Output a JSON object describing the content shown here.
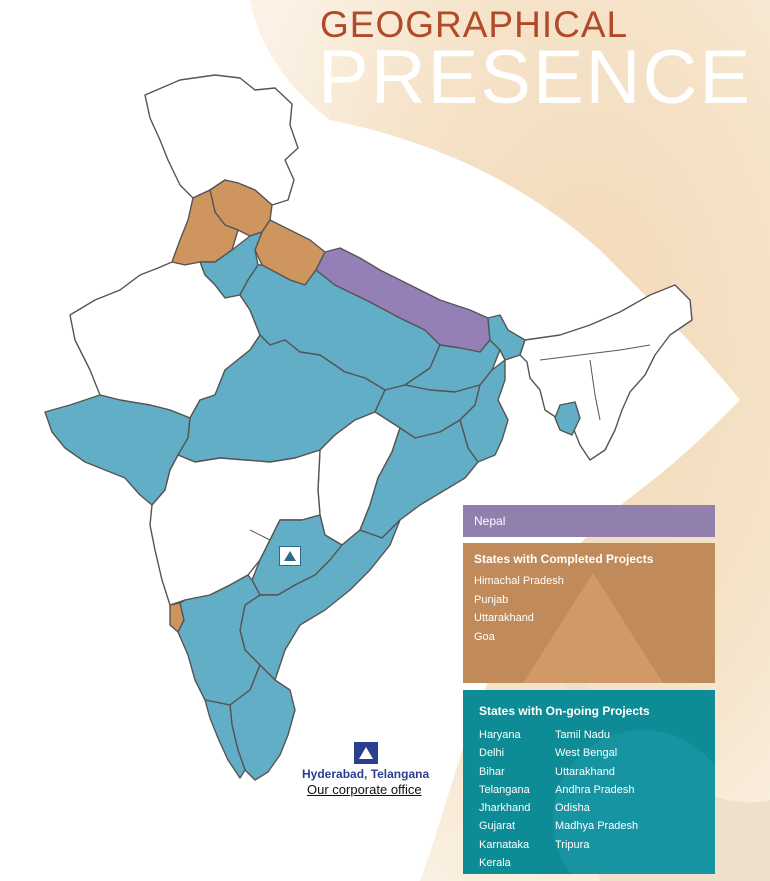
{
  "title": {
    "line1": "GEOGRAPHICAL",
    "line2": "PRESENCE"
  },
  "legend": {
    "nepal": {
      "label": "Nepal",
      "color": "#917fae"
    },
    "completed": {
      "heading": "States with Completed Projects",
      "color": "#c08a5a",
      "states": [
        "Himachal Pradesh",
        "Punjab",
        "Uttarakhand",
        "Goa"
      ]
    },
    "ongoing": {
      "heading": "States with On-going Projects",
      "color": "#0e8c95",
      "col1": [
        "Haryana",
        "Delhi",
        "Bihar",
        "Telangana",
        "Jharkhand",
        "Gujarat",
        "Karnataka",
        "Kerala"
      ],
      "col2": [
        "Tamil Nadu",
        "West Bengal",
        "Uttarakhand",
        "Andhra Pradesh",
        "Odisha",
        "Madhya Pradesh",
        "Tripura"
      ]
    }
  },
  "map_colors": {
    "ongoing_state": "#62aec6",
    "completed_state": "#cf955f",
    "nepal": "#9480b6",
    "other_state": "#ffffff",
    "border": "#555555"
  },
  "office": {
    "location": "Hyderabad, Telangana",
    "label": "Our corporate office"
  },
  "icons": {
    "office_marker": "company-logo-icon",
    "map_marker": "office-pin-icon"
  }
}
